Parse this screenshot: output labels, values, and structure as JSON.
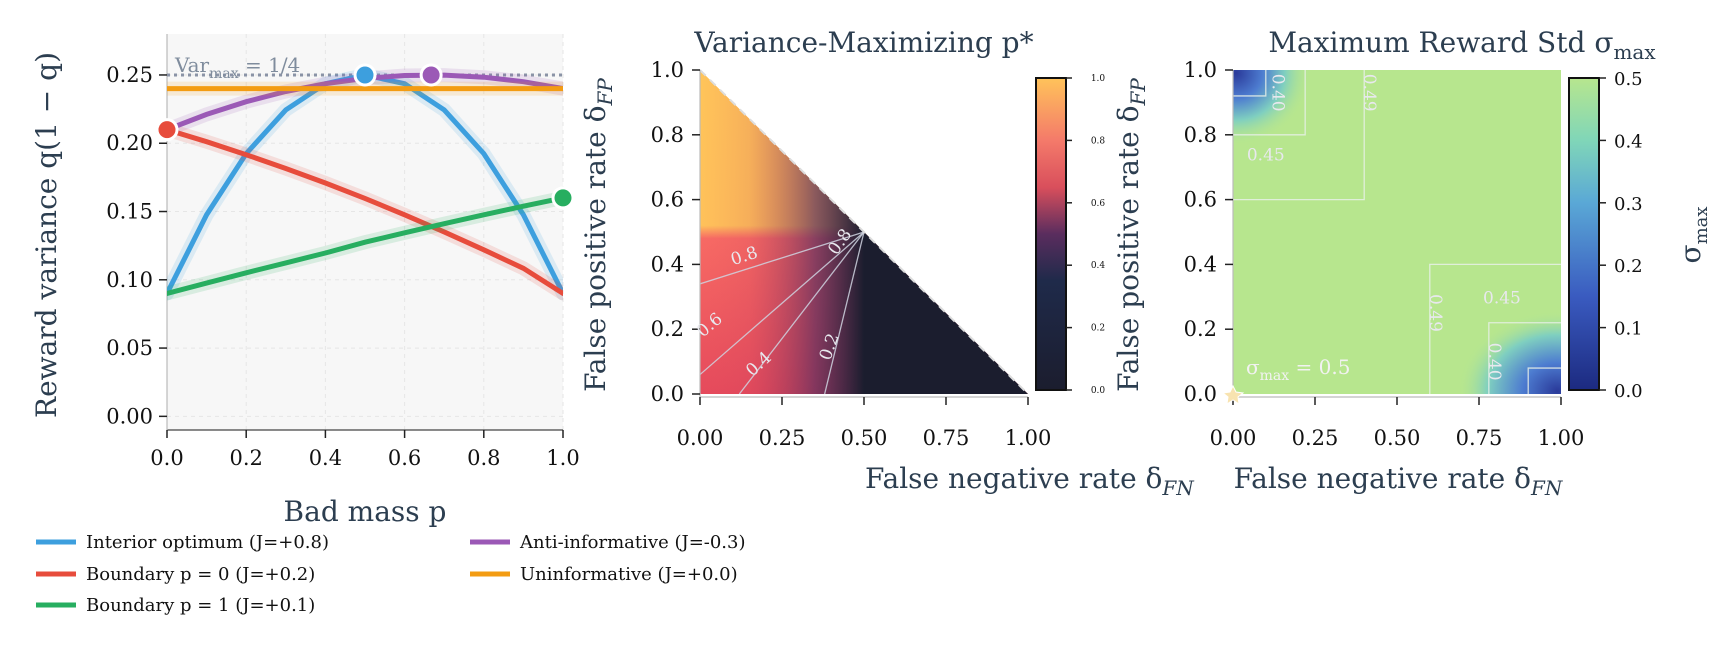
{
  "panels": {
    "left": {
      "ylabel": "Reward variance q(1 − q)",
      "xlabel": "Bad mass p",
      "var_label": "Var",
      "var_label_sub": "max",
      "var_label_rest": " = 1/4",
      "xticks": [
        "0.0",
        "0.2",
        "0.4",
        "0.6",
        "0.8",
        "1.0"
      ],
      "yticks": [
        "0.00",
        "0.05",
        "0.10",
        "0.15",
        "0.20",
        "0.25"
      ]
    },
    "middle": {
      "title": "Variance-Maximizing p*",
      "xlabel": "False negative rate δ",
      "xlabel_sub": "FN",
      "ylabel": "False positive rate δ",
      "ylabel_sub": "FP",
      "xticks": [
        "0.00",
        "0.25",
        "0.50",
        "0.75",
        "1.00"
      ],
      "yticks": [
        "0.0",
        "0.2",
        "0.4",
        "0.6",
        "0.8",
        "1.0"
      ],
      "cbar_ticks": [
        "0.0",
        "0.2",
        "0.4",
        "0.6",
        "0.8",
        "1.0"
      ],
      "contour_labels": [
        "0.8",
        "0.6",
        "0.4",
        "0.2",
        "0.8"
      ]
    },
    "right": {
      "title": "Maximum Reward Std σ",
      "title_sub": "max",
      "xlabel": "False negative rate δ",
      "xlabel_sub": "FN",
      "ylabel": "False positive rate δ",
      "ylabel_sub": "FP",
      "xticks": [
        "0.00",
        "0.25",
        "0.50",
        "0.75",
        "1.00"
      ],
      "yticks": [
        "0.0",
        "0.2",
        "0.4",
        "0.6",
        "0.8",
        "1.0"
      ],
      "cbar_ticks": [
        "0.0",
        "0.1",
        "0.2",
        "0.3",
        "0.4",
        "0.5"
      ],
      "cbar_label": "σ",
      "cbar_label_sub": "max",
      "annotation": "σ",
      "annotation_sub": "max",
      "annotation_rest": " = 0.5",
      "contour_labels": [
        "0.40",
        "0.45",
        "0.49",
        "0.49",
        "0.45",
        "0.40"
      ]
    }
  },
  "legend": [
    {
      "label": "Interior optimum (J=+0.8)",
      "color": "#3d9fde"
    },
    {
      "label": "Anti-informative (J=-0.3)",
      "color": "#9b59b6"
    },
    {
      "label": "Boundary p = 0 (J=+0.2)",
      "color": "#e74c3c"
    },
    {
      "label": "Uninformative (J=+0.0)",
      "color": "#f39c12"
    },
    {
      "label": "Boundary p = 1 (J=+0.1)",
      "color": "#27ae60"
    }
  ],
  "chart_data": [
    {
      "type": "line",
      "xlabel": "Bad mass p",
      "ylabel": "Reward variance q(1 − q)",
      "xlim": [
        0,
        1
      ],
      "ylim": [
        -0.01,
        0.28
      ],
      "grid": true,
      "reference_line": {
        "y": 0.25,
        "label": "Var_max = 1/4"
      },
      "series": [
        {
          "name": "Interior optimum (J=+0.8)",
          "color": "#3d9fde",
          "x": [
            0,
            0.1,
            0.2,
            0.3,
            0.4,
            0.5,
            0.6,
            0.7,
            0.8,
            0.9,
            1.0
          ],
          "y": [
            0.09,
            0.1476,
            0.1924,
            0.2244,
            0.2436,
            0.25,
            0.2436,
            0.2244,
            0.1924,
            0.1476,
            0.09
          ],
          "marker": {
            "x": 0.5,
            "y": 0.25
          }
        },
        {
          "name": "Boundary p = 0 (J=+0.2)",
          "color": "#e74c3c",
          "x": [
            0,
            0.1,
            0.2,
            0.3,
            0.4,
            0.5,
            0.6,
            0.7,
            0.8,
            0.9,
            1.0
          ],
          "y": [
            0.21,
            0.2011,
            0.1916,
            0.1815,
            0.1709,
            0.1596,
            0.1476,
            0.1351,
            0.122,
            0.1084,
            0.09
          ],
          "marker": {
            "x": 0,
            "y": 0.21
          }
        },
        {
          "name": "Boundary p = 1 (J=+0.1)",
          "color": "#27ae60",
          "x": [
            0,
            0.1,
            0.2,
            0.3,
            0.4,
            0.5,
            0.6,
            0.7,
            0.8,
            0.9,
            1.0
          ],
          "y": [
            0.09,
            0.0976,
            0.1051,
            0.1124,
            0.1196,
            0.1275,
            0.1344,
            0.1411,
            0.1476,
            0.1539,
            0.16
          ],
          "marker": {
            "x": 1,
            "y": 0.16
          }
        },
        {
          "name": "Anti-informative (J=-0.3)",
          "color": "#9b59b6",
          "x": [
            0,
            0.1,
            0.2,
            0.3,
            0.4,
            0.5,
            0.6,
            0.7,
            0.8,
            0.9,
            1.0
          ],
          "y": [
            0.21,
            0.2211,
            0.2304,
            0.2379,
            0.2436,
            0.2475,
            0.2496,
            0.2499,
            0.2484,
            0.2451,
            0.24
          ],
          "marker": {
            "x": 0.667,
            "y": 0.25
          }
        },
        {
          "name": "Uninformative (J=+0.0)",
          "color": "#f39c12",
          "x": [
            0,
            1.0
          ],
          "y": [
            0.24,
            0.24
          ]
        }
      ]
    },
    {
      "type": "heatmap",
      "title": "Variance-Maximizing p*",
      "xlabel": "False negative rate δ_FN",
      "ylabel": "False positive rate δ_FP",
      "xlim": [
        0,
        1
      ],
      "ylim": [
        0,
        1
      ],
      "valid_region": "δ_FN + δ_FP < 1",
      "colorbar_range": [
        0,
        1
      ],
      "contour_levels": [
        0.2,
        0.4,
        0.6,
        0.8
      ]
    },
    {
      "type": "heatmap",
      "title": "Maximum Reward Std σ_max",
      "xlabel": "False negative rate δ_FN",
      "ylabel": "False positive rate δ_FP",
      "xlim": [
        0,
        1
      ],
      "ylim": [
        0,
        1
      ],
      "colorbar_range": [
        0,
        0.5
      ],
      "colorbar_label": "σ_max",
      "contour_levels": [
        0.4,
        0.45,
        0.49
      ]
    }
  ]
}
